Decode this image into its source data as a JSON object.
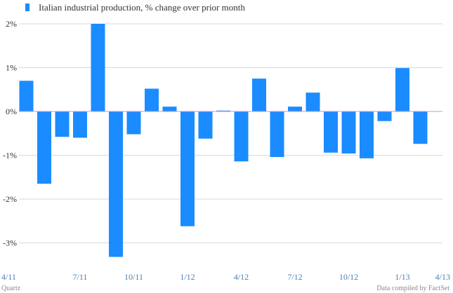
{
  "chart_data": {
    "type": "bar",
    "legend": "Italian industrial production, % change over prior month",
    "series_color": "#1a8cff",
    "zero_line_color": "#e08ac8",
    "grid_color": "#d9d9d9",
    "ylim": [
      -3.4,
      2.1
    ],
    "yticks": [
      {
        "value": 2,
        "label": "2%"
      },
      {
        "value": 1,
        "label": "1%"
      },
      {
        "value": 0,
        "label": "0%"
      },
      {
        "value": -1,
        "label": "-1%"
      },
      {
        "value": -2,
        "label": "-2%"
      },
      {
        "value": -3,
        "label": "-3%"
      }
    ],
    "xticks": [
      {
        "index": 0,
        "label": "4/11"
      },
      {
        "index": 3,
        "label": "7/11"
      },
      {
        "index": 6,
        "label": "10/11"
      },
      {
        "index": 9,
        "label": "1/12"
      },
      {
        "index": 12,
        "label": "4/12"
      },
      {
        "index": 15,
        "label": "7/12"
      },
      {
        "index": 18,
        "label": "10/12"
      },
      {
        "index": 21,
        "label": "1/13"
      },
      {
        "index": 24,
        "label": "4/13"
      }
    ],
    "categories": [
      "4/11",
      "5/11",
      "6/11",
      "7/11",
      "8/11",
      "9/11",
      "10/11",
      "11/11",
      "12/11",
      "1/12",
      "2/12",
      "3/12",
      "4/12",
      "5/12",
      "6/12",
      "7/12",
      "8/12",
      "9/12",
      "10/12",
      "11/12",
      "12/12",
      "1/13",
      "2/13",
      "3/13",
      "4/13"
    ],
    "values": [
      0.7,
      -1.65,
      -0.58,
      -0.6,
      2.0,
      -3.32,
      -0.52,
      0.52,
      0.11,
      -2.62,
      -0.62,
      0.02,
      -1.14,
      0.75,
      -1.04,
      0.11,
      0.43,
      -0.94,
      -0.96,
      -1.07,
      -0.22,
      0.99,
      -0.74,
      0.0,
      0.0
    ]
  },
  "footer": {
    "source_left": "Quartz",
    "source_right": "Data compiled by FactSet"
  }
}
